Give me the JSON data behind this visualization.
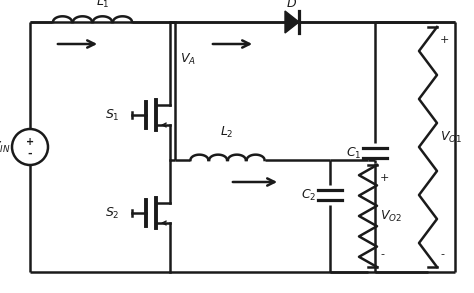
{
  "bg_color": "#ffffff",
  "line_color": "#1a1a1a",
  "lw": 1.8,
  "fig_width": 4.74,
  "fig_height": 2.93,
  "dpi": 100
}
